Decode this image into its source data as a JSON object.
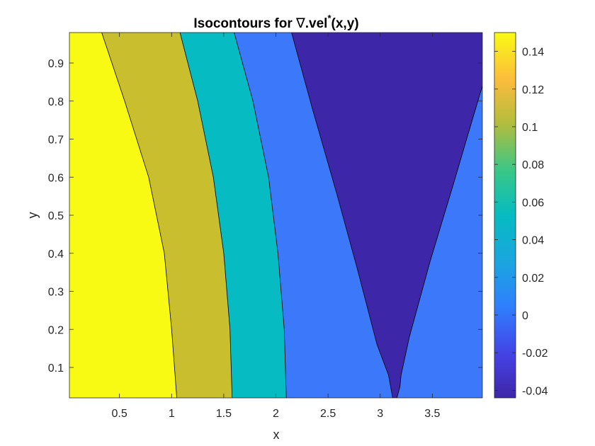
{
  "chart_data": {
    "type": "contourf",
    "title": {
      "main": "Isocontours for ",
      "nabla": "∇",
      "vel": ".vel",
      "superscript": "*",
      "args": "(x,y)"
    },
    "xlabel": "x",
    "ylabel": "y",
    "xlim": [
      0.02,
      3.98
    ],
    "ylim": [
      0.02,
      0.98
    ],
    "xticks": [
      0.5,
      1,
      1.5,
      2,
      2.5,
      3,
      3.5
    ],
    "xtick_labels": [
      "0.5",
      "1",
      "1.5",
      "2",
      "2.5",
      "3",
      "3.5"
    ],
    "yticks": [
      0.1,
      0.2,
      0.3,
      0.4,
      0.5,
      0.6,
      0.7,
      0.8,
      0.9
    ],
    "ytick_labels": [
      "0.1",
      "0.2",
      "0.3",
      "0.4",
      "0.5",
      "0.6",
      "0.7",
      "0.8",
      "0.9"
    ],
    "colorbar": {
      "lim": [
        -0.044,
        0.15
      ],
      "ticks": [
        -0.04,
        -0.02,
        0,
        0.02,
        0.04,
        0.06,
        0.08,
        0.1,
        0.12,
        0.14
      ],
      "tick_labels": [
        "-0.04",
        "-0.02",
        "0",
        "0.02",
        "0.04",
        "0.06",
        "0.08",
        "0.1",
        "0.12",
        "0.14"
      ],
      "colormap": "parula"
    },
    "levels": [
      {
        "value": -0.04,
        "color": "#3e26a8"
      },
      {
        "value": 0.0,
        "color": "#3c79fa"
      },
      {
        "value": 0.05,
        "color": "#06bbc1"
      },
      {
        "value": 0.1,
        "color": "#c8be2e"
      },
      {
        "value": 0.15,
        "color": "#f9fa14"
      }
    ],
    "contour_lines": [
      {
        "level": 0.1,
        "points": [
          [
            0.33,
            0.98
          ],
          [
            0.55,
            0.8
          ],
          [
            0.78,
            0.6
          ],
          [
            0.93,
            0.4
          ],
          [
            1.0,
            0.2
          ],
          [
            1.05,
            0.02
          ]
        ]
      },
      {
        "level": 0.05,
        "points": [
          [
            1.08,
            0.98
          ],
          [
            1.25,
            0.8
          ],
          [
            1.4,
            0.6
          ],
          [
            1.5,
            0.4
          ],
          [
            1.56,
            0.2
          ],
          [
            1.58,
            0.02
          ]
        ]
      },
      {
        "level": 0.0,
        "points": [
          [
            1.6,
            0.98
          ],
          [
            1.78,
            0.8
          ],
          [
            1.93,
            0.6
          ],
          [
            2.02,
            0.4
          ],
          [
            2.08,
            0.2
          ],
          [
            2.1,
            0.02
          ]
        ]
      },
      {
        "level": -0.04,
        "points": [
          [
            2.15,
            0.98
          ],
          [
            2.35,
            0.78
          ],
          [
            2.58,
            0.56
          ],
          [
            2.78,
            0.36
          ],
          [
            2.97,
            0.16
          ],
          [
            3.08,
            0.08
          ],
          [
            3.1,
            0.05
          ],
          [
            3.12,
            0.02
          ],
          [
            3.16,
            0.02
          ],
          [
            3.19,
            0.05
          ],
          [
            3.2,
            0.08
          ],
          [
            3.28,
            0.18
          ],
          [
            3.48,
            0.38
          ],
          [
            3.7,
            0.58
          ],
          [
            3.85,
            0.72
          ],
          [
            3.98,
            0.84
          ]
        ]
      }
    ],
    "grid": false
  }
}
